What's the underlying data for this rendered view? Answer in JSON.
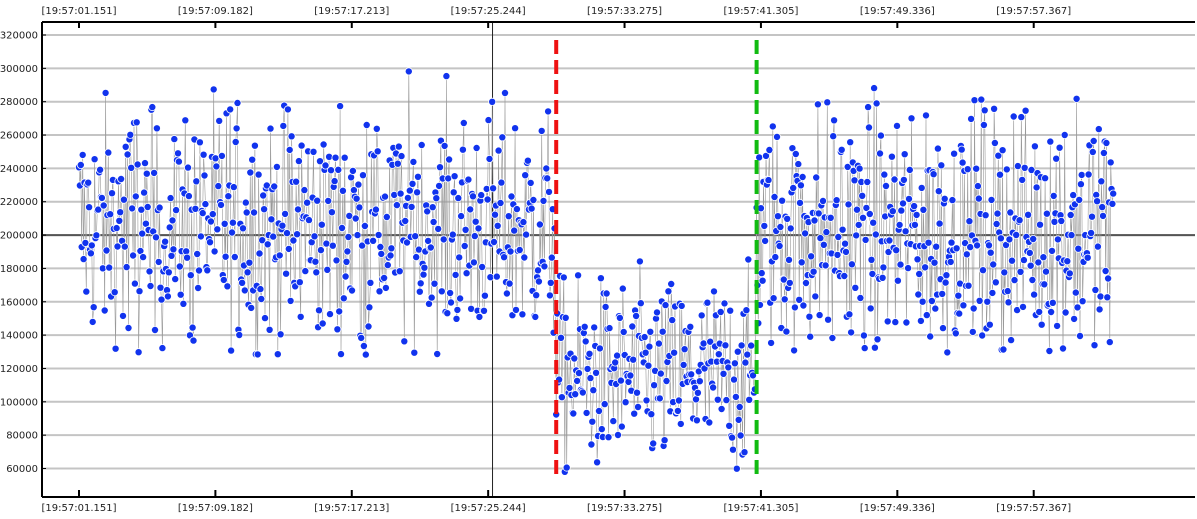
{
  "chart_data": {
    "type": "scatter",
    "x_tick_labels": [
      "[19:57:01.151]",
      "[19:57:09.182]",
      "[19:57:17.213]",
      "[19:57:25.244]",
      "[19:57:33.275]",
      "[19:57:41.305]",
      "[19:57:49.336]",
      "[19:57:57.367]"
    ],
    "y_tick_labels": [
      "60000",
      "80000",
      "100000",
      "120000",
      "140000",
      "160000",
      "180000",
      "200000",
      "220000",
      "240000",
      "260000",
      "280000",
      "300000",
      "320000"
    ],
    "ylim": [
      48000,
      327000
    ],
    "xlim_seconds": [
      0,
      63.3
    ],
    "baseline": 200000,
    "cursor_x_seconds": 24.35,
    "markers": [
      {
        "name": "red",
        "x_seconds": 28.1,
        "color": "#ee1111"
      },
      {
        "name": "green",
        "x_seconds": 39.9,
        "color": "#11bb11"
      }
    ],
    "segments": [
      {
        "x_start": 0.0,
        "x_end": 28.0,
        "mean": 205000,
        "count": 520
      },
      {
        "x_start": 28.1,
        "x_end": 39.8,
        "mean": 115000,
        "count": 210
      },
      {
        "x_start": 39.9,
        "x_end": 60.9,
        "mean": 202000,
        "count": 420
      }
    ],
    "y_range_segment_high": [
      128000,
      317000
    ],
    "y_range_segment_low": [
      55000,
      206000
    ],
    "point_color": "#1133ee",
    "grid": true
  }
}
